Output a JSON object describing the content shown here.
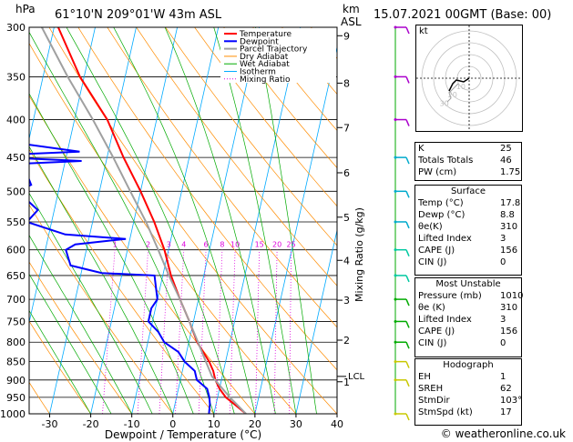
{
  "header": {
    "hpa_unit": "hPa",
    "location": "61°10'N  209°01'W  43m  ASL",
    "km_unit": "km",
    "asl_unit": "ASL",
    "valid_time": "15.07.2021  00GMT  (Base: 00)"
  },
  "chart_data": {
    "type": "line",
    "title": "",
    "xlabel": "Dewpoint / Temperature (°C)",
    "ylabel": "hPa",
    "mixing_ratio_label": "Mixing Ratio (g/kg)",
    "xlim": [
      -35,
      40
    ],
    "ylim": [
      1000,
      300
    ],
    "x_ticks": [
      "-30",
      "-20",
      "-10",
      "0",
      "10",
      "20",
      "30",
      "40"
    ],
    "pressure_ticks": [
      "300",
      "350",
      "400",
      "450",
      "500",
      "550",
      "600",
      "650",
      "700",
      "750",
      "800",
      "850",
      "900",
      "950",
      "1000"
    ],
    "km_ticks": [
      {
        "km": "1",
        "p": 905
      },
      {
        "km": "2",
        "p": 795
      },
      {
        "km": "3",
        "p": 702
      },
      {
        "km": "4",
        "p": 620
      },
      {
        "km": "5",
        "p": 542
      },
      {
        "km": "6",
        "p": 472
      },
      {
        "km": "7",
        "p": 410
      },
      {
        "km": "8",
        "p": 357
      },
      {
        "km": "9",
        "p": 308
      }
    ],
    "lcl": {
      "label": "LCL",
      "p": 890
    },
    "mixing_ratio_labels": [
      {
        "label": "1",
        "w": 1
      },
      {
        "label": "2",
        "w": 2
      },
      {
        "label": "3",
        "w": 3
      },
      {
        "label": "4",
        "w": 4
      },
      {
        "label": "6",
        "w": 6
      },
      {
        "label": "8",
        "w": 8
      },
      {
        "label": "10",
        "w": 10
      },
      {
        "label": "15",
        "w": 15
      },
      {
        "label": "20",
        "w": 20
      },
      {
        "label": "25",
        "w": 25
      }
    ],
    "legend_position": "top-left",
    "series": [
      {
        "name": "Temperature",
        "color": "#ff0000",
        "points": [
          [
            1000,
            17.8
          ],
          [
            975,
            15
          ],
          [
            950,
            12
          ],
          [
            925,
            10
          ],
          [
            900,
            8.5
          ],
          [
            875,
            7.5
          ],
          [
            850,
            6
          ],
          [
            800,
            2
          ],
          [
            750,
            -1
          ],
          [
            700,
            -4.5
          ],
          [
            650,
            -8
          ],
          [
            600,
            -11
          ],
          [
            550,
            -15
          ],
          [
            500,
            -20
          ],
          [
            450,
            -26
          ],
          [
            400,
            -32
          ],
          [
            350,
            -41
          ],
          [
            300,
            -49
          ]
        ]
      },
      {
        "name": "Dewpoint",
        "color": "#0000ff",
        "points": [
          [
            1000,
            8.8
          ],
          [
            970,
            8.5
          ],
          [
            950,
            8
          ],
          [
            925,
            7
          ],
          [
            900,
            4
          ],
          [
            875,
            3
          ],
          [
            850,
            0
          ],
          [
            825,
            -2
          ],
          [
            800,
            -6
          ],
          [
            775,
            -8
          ],
          [
            750,
            -11
          ],
          [
            720,
            -11
          ],
          [
            700,
            -10
          ],
          [
            675,
            -11
          ],
          [
            650,
            -12
          ],
          [
            645,
            -25
          ],
          [
            630,
            -33
          ],
          [
            615,
            -34
          ],
          [
            600,
            -35
          ],
          [
            590,
            -33
          ],
          [
            580,
            -21
          ],
          [
            572,
            -36
          ],
          [
            550,
            -46
          ],
          [
            530,
            -44
          ],
          [
            500,
            -50
          ],
          [
            490,
            -47
          ],
          [
            480,
            -48
          ],
          [
            470,
            -52
          ],
          [
            460,
            -55
          ],
          [
            455,
            -36
          ],
          [
            448,
            -62
          ],
          [
            442,
            -37
          ],
          [
            430,
            -53
          ],
          [
            415,
            -55
          ],
          [
            405,
            -56
          ],
          [
            395,
            -57
          ],
          [
            380,
            -58
          ],
          [
            365,
            -57
          ],
          [
            345,
            -61
          ],
          [
            330,
            -62
          ],
          [
            320,
            -64
          ],
          [
            300,
            -68
          ]
        ]
      },
      {
        "name": "Parcel Trajectory",
        "color": "#a0a0a0",
        "points": [
          [
            1000,
            17.8
          ],
          [
            950,
            13
          ],
          [
            890,
            7.5
          ],
          [
            850,
            5.2
          ],
          [
            800,
            2.2
          ],
          [
            750,
            -1
          ],
          [
            700,
            -4.5
          ],
          [
            650,
            -8.5
          ],
          [
            600,
            -12.5
          ],
          [
            550,
            -17
          ],
          [
            500,
            -22.5
          ],
          [
            450,
            -28.5
          ],
          [
            400,
            -35.5
          ],
          [
            350,
            -44
          ],
          [
            300,
            -53
          ]
        ]
      }
    ],
    "legend_extra": [
      "Dry Adiabat",
      "Wet Adiabat",
      "Isotherm",
      "Mixing Ratio"
    ],
    "legend_colors": [
      "#ff0000",
      "#0000ff",
      "#a0a0a0",
      "#ff8c00",
      "#00aa00",
      "#00aaff",
      "#dd00dd"
    ]
  },
  "hodograph": {
    "unit_label": "kt",
    "ring_labels": [
      "10",
      "20",
      "30"
    ]
  },
  "indices": [
    {
      "label": "K",
      "value": "25"
    },
    {
      "label": "Totals Totals",
      "value": "46"
    },
    {
      "label": "PW (cm)",
      "value": "1.75"
    }
  ],
  "surface": {
    "title": "Surface",
    "rows": [
      {
        "label": "Temp (°C)",
        "value": "17.8"
      },
      {
        "label": "Dewp (°C)",
        "value": "8.8"
      },
      {
        "label": "θe(K)",
        "value": "310"
      },
      {
        "label": "Lifted Index",
        "value": "3"
      },
      {
        "label": "CAPE (J)",
        "value": "156"
      },
      {
        "label": "CIN (J)",
        "value": "0"
      }
    ]
  },
  "most_unstable": {
    "title": "Most Unstable",
    "rows": [
      {
        "label": "Pressure (mb)",
        "value": "1010"
      },
      {
        "label": "θe (K)",
        "value": "310"
      },
      {
        "label": "Lifted Index",
        "value": "3"
      },
      {
        "label": "CAPE (J)",
        "value": "156"
      },
      {
        "label": "CIN (J)",
        "value": "0"
      }
    ]
  },
  "hodograph_table": {
    "title": "Hodograph",
    "rows": [
      {
        "label": "EH",
        "value": "1"
      },
      {
        "label": "SREH",
        "value": "62"
      },
      {
        "label": "StmDir",
        "value": "103°"
      },
      {
        "label": "StmSpd (kt)",
        "value": "17"
      }
    ]
  },
  "footer": {
    "credit": "© weatheronline.co.uk"
  }
}
